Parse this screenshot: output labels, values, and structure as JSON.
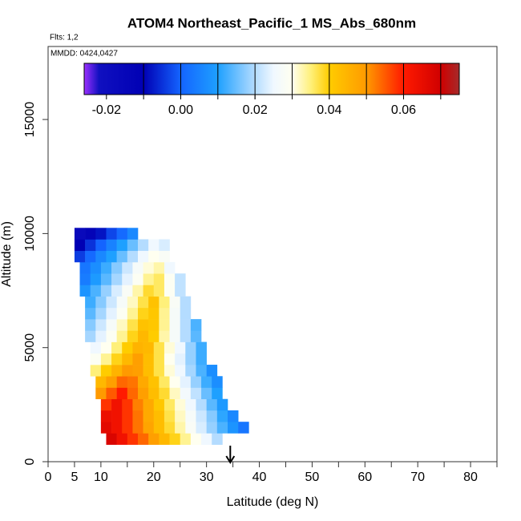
{
  "chart_data": {
    "type": "heatmap",
    "title": "ATOM4 Northeast_Pacific_1 MS_Abs_680nm",
    "flights": "Flts: 1,2",
    "dates": "MMDD: 0424,0427",
    "xlabel": "Latitude (deg N)",
    "ylabel": "Altitude (m)",
    "xlim": [
      0,
      85
    ],
    "ylim": [
      0,
      18200
    ],
    "xticks": [
      0,
      5,
      10,
      20,
      30,
      40,
      50,
      60,
      70,
      80
    ],
    "xminor_ticks": [
      15,
      25,
      35,
      45,
      55,
      65,
      75,
      85
    ],
    "yticks": [
      0,
      5000,
      10000,
      15000
    ],
    "arrow_lat": 34.5,
    "rows": [
      {
        "altitude": 1000,
        "lat_start": 11,
        "lat_step": 2,
        "values": [
          0.068,
          0.063,
          0.058,
          0.054,
          0.049,
          0.044,
          0.039,
          0.034,
          0.03,
          0.025,
          0.02
        ]
      },
      {
        "altitude": 1500,
        "lat_start": 10,
        "lat_step": 2,
        "values": [
          0.066,
          0.063,
          0.058,
          0.053,
          0.048,
          0.043,
          0.038,
          0.033,
          0.028,
          0.023,
          0.018,
          0.013,
          0.008,
          0.003
        ]
      },
      {
        "altitude": 2000,
        "lat_start": 10,
        "lat_step": 2,
        "values": [
          0.064,
          0.063,
          0.058,
          0.053,
          0.047,
          0.043,
          0.037,
          0.032,
          0.027,
          0.022,
          0.017,
          0.011,
          0.006
        ]
      },
      {
        "altitude": 2500,
        "lat_start": 10,
        "lat_step": 2,
        "values": [
          0.058,
          0.063,
          0.058,
          0.052,
          0.047,
          0.041,
          0.036,
          0.031,
          0.025,
          0.02,
          0.014,
          0.009
        ]
      },
      {
        "altitude": 3000,
        "lat_start": 9,
        "lat_step": 2,
        "values": [
          0.05,
          0.055,
          0.06,
          0.054,
          0.049,
          0.043,
          0.038,
          0.032,
          0.026,
          0.021,
          0.015,
          0.01
        ]
      },
      {
        "altitude": 3500,
        "lat_start": 9,
        "lat_step": 2,
        "values": [
          0.044,
          0.049,
          0.054,
          0.053,
          0.047,
          0.042,
          0.036,
          0.03,
          0.024,
          0.018,
          0.012,
          0.007
        ]
      },
      {
        "altitude": 4000,
        "lat_start": 8,
        "lat_step": 2,
        "values": [
          0.035,
          0.04,
          0.045,
          0.05,
          0.049,
          0.043,
          0.037,
          0.031,
          0.025,
          0.019,
          0.013,
          0.007
        ]
      },
      {
        "altitude": 4500,
        "lat_start": 8,
        "lat_step": 2,
        "values": [
          0.029,
          0.034,
          0.039,
          0.044,
          0.049,
          0.043,
          0.037,
          0.03,
          0.024,
          0.018,
          0.012
        ]
      },
      {
        "altitude": 5000,
        "lat_start": 8,
        "lat_step": 2,
        "values": [
          0.025,
          0.03,
          0.035,
          0.04,
          0.045,
          0.044,
          0.037,
          0.031,
          0.025,
          0.018,
          0.012
        ]
      },
      {
        "altitude": 5500,
        "lat_start": 7,
        "lat_step": 2,
        "values": [
          0.019,
          0.024,
          0.029,
          0.034,
          0.039,
          0.044,
          0.04,
          0.033,
          0.027,
          0.02,
          0.014
        ]
      },
      {
        "altitude": 6000,
        "lat_start": 7,
        "lat_step": 2,
        "values": [
          0.017,
          0.022,
          0.027,
          0.032,
          0.037,
          0.042,
          0.041,
          0.034,
          0.027,
          0.02,
          0.013
        ]
      },
      {
        "altitude": 6500,
        "lat_start": 7,
        "lat_step": 2,
        "values": [
          0.014,
          0.019,
          0.024,
          0.029,
          0.034,
          0.039,
          0.041,
          0.034,
          0.027,
          0.02
        ]
      },
      {
        "altitude": 7000,
        "lat_start": 7,
        "lat_step": 2,
        "values": [
          0.012,
          0.017,
          0.022,
          0.027,
          0.032,
          0.037,
          0.042,
          0.035,
          0.028,
          0.02
        ]
      },
      {
        "altitude": 7500,
        "lat_start": 6,
        "lat_step": 2,
        "values": [
          0.008,
          0.013,
          0.018,
          0.023,
          0.028,
          0.033,
          0.038,
          0.036,
          0.029,
          0.021
        ]
      },
      {
        "altitude": 8000,
        "lat_start": 6,
        "lat_step": 2,
        "values": [
          0.004,
          0.009,
          0.014,
          0.019,
          0.024,
          0.029,
          0.034,
          0.036,
          0.029,
          0.021
        ]
      },
      {
        "altitude": 8500,
        "lat_start": 6,
        "lat_step": 2,
        "values": [
          0.003,
          0.007,
          0.012,
          0.017,
          0.022,
          0.027,
          0.031,
          0.033,
          0.025
        ]
      },
      {
        "altitude": 9000,
        "lat_start": 5,
        "lat_step": 2,
        "values": [
          -0.004,
          0.001,
          0.006,
          0.01,
          0.015,
          0.02,
          0.025,
          0.03,
          0.028
        ]
      },
      {
        "altitude": 9500,
        "lat_start": 5,
        "lat_step": 2,
        "values": [
          -0.01,
          -0.005,
          0.0,
          0.005,
          0.01,
          0.015,
          0.02,
          0.025,
          0.023
        ]
      },
      {
        "altitude": 10000,
        "lat_start": 5,
        "lat_step": 2,
        "values": [
          -0.017,
          -0.013,
          -0.008,
          -0.003,
          0.001,
          0.006
        ]
      }
    ],
    "colorbar": {
      "lim": [
        -0.026,
        0.075
      ],
      "ticks": [
        -0.02,
        {
          "value": 0,
          "label": "0.00"
        },
        0.02,
        0.04,
        0.06
      ],
      "divisions": [
        -0.01,
        0,
        0.01,
        0.02,
        0.03,
        0.04,
        0.05,
        0.06,
        0.07
      ],
      "colorscale": [
        [
          -0.026,
          "#9b30ff"
        ],
        [
          -0.022,
          "#1010c0"
        ],
        [
          -0.01,
          "#0000b4"
        ],
        [
          0.0,
          "#1464ff"
        ],
        [
          0.01,
          "#1ea0ff"
        ],
        [
          0.02,
          "#b4dcff"
        ],
        [
          0.025,
          "#f0f8ff"
        ],
        [
          0.03,
          "#fffff0"
        ],
        [
          0.035,
          "#fff07a"
        ],
        [
          0.04,
          "#ffcc00"
        ],
        [
          0.05,
          "#ff9a00"
        ],
        [
          0.06,
          "#ff1a00"
        ],
        [
          0.07,
          "#d00000"
        ],
        [
          0.075,
          "#a52a2a"
        ]
      ]
    }
  }
}
